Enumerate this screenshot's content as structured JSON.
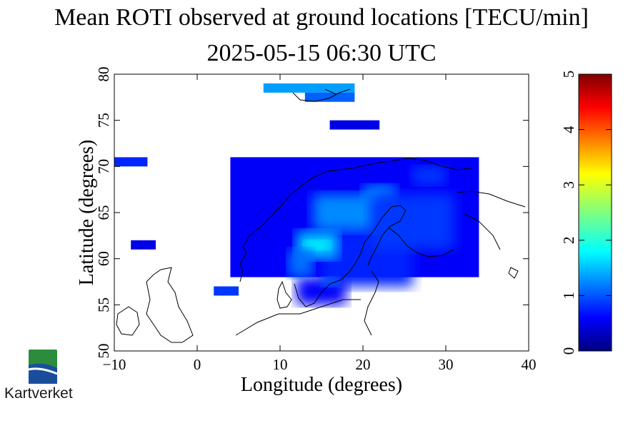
{
  "title": "Mean ROTI observed at ground locations [TECU/min]",
  "subtitle": "2025-05-15 06:30 UTC",
  "logo_text": "Kartverket",
  "chart_data": {
    "type": "heatmap",
    "title": "Mean ROTI observed at ground locations [TECU/min]",
    "subtitle": "2025-05-15 06:30 UTC",
    "xlabel": "Longitude (degrees)",
    "ylabel": "Latitude (degrees)",
    "xlim": [
      -10,
      40
    ],
    "ylim": [
      50,
      80
    ],
    "xticks": [
      -10,
      0,
      10,
      20,
      30,
      40
    ],
    "xtick_labels": [
      "−10",
      "0",
      "10",
      "20",
      "30",
      "40"
    ],
    "yticks": [
      50,
      55,
      60,
      65,
      70,
      75,
      80
    ],
    "ytick_labels": [
      "50",
      "55",
      "60",
      "65",
      "70",
      "75",
      "80"
    ],
    "colorbar": {
      "min": 0,
      "max": 5,
      "ticks": [
        0,
        1,
        2,
        3,
        4,
        5
      ],
      "tick_labels": [
        "0",
        "1",
        "2",
        "3",
        "4",
        "5"
      ],
      "colormap": "jet"
    },
    "cells": [
      {
        "lon": [
          8,
          19
        ],
        "lat": [
          78,
          79
        ],
        "value": 1.4
      },
      {
        "lon": [
          13,
          19
        ],
        "lat": [
          77,
          78
        ],
        "value": 1.1
      },
      {
        "lon": [
          16,
          22
        ],
        "lat": [
          74,
          75
        ],
        "value": 0.5
      },
      {
        "lon": [
          -10,
          -6
        ],
        "lat": [
          70,
          71
        ],
        "value": 0.8
      },
      {
        "lon": [
          -8,
          -5
        ],
        "lat": [
          61,
          62
        ],
        "value": 0.5
      },
      {
        "lon": [
          2,
          5
        ],
        "lat": [
          56,
          57
        ],
        "value": 0.9
      },
      {
        "lon": [
          4,
          34
        ],
        "lat": [
          58,
          71
        ],
        "value": 0.6
      },
      {
        "lon": [
          12,
          18
        ],
        "lat": [
          55,
          58
        ],
        "value": 0.6
      },
      {
        "lon": [
          15,
          26
        ],
        "lat": [
          57,
          63
        ],
        "value": 0.8
      },
      {
        "lon": [
          12,
          17
        ],
        "lat": [
          60,
          63
        ],
        "value": 1.6
      },
      {
        "lon": [
          13,
          16
        ],
        "lat": [
          61,
          62
        ],
        "value": 1.9
      },
      {
        "lon": [
          14,
          22
        ],
        "lat": [
          63,
          67
        ],
        "value": 1.3
      },
      {
        "lon": [
          20,
          24
        ],
        "lat": [
          66,
          68
        ],
        "value": 1.3
      },
      {
        "lon": [
          11,
          14
        ],
        "lat": [
          58,
          61
        ],
        "value": 1.2
      },
      {
        "lon": [
          15,
          17
        ],
        "lat": [
          57,
          58
        ],
        "value": 1.2
      },
      {
        "lon": [
          21,
          31
        ],
        "lat": [
          61,
          67
        ],
        "value": 0.9
      },
      {
        "lon": [
          26,
          30
        ],
        "lat": [
          68,
          70
        ],
        "value": 0.9
      }
    ]
  }
}
